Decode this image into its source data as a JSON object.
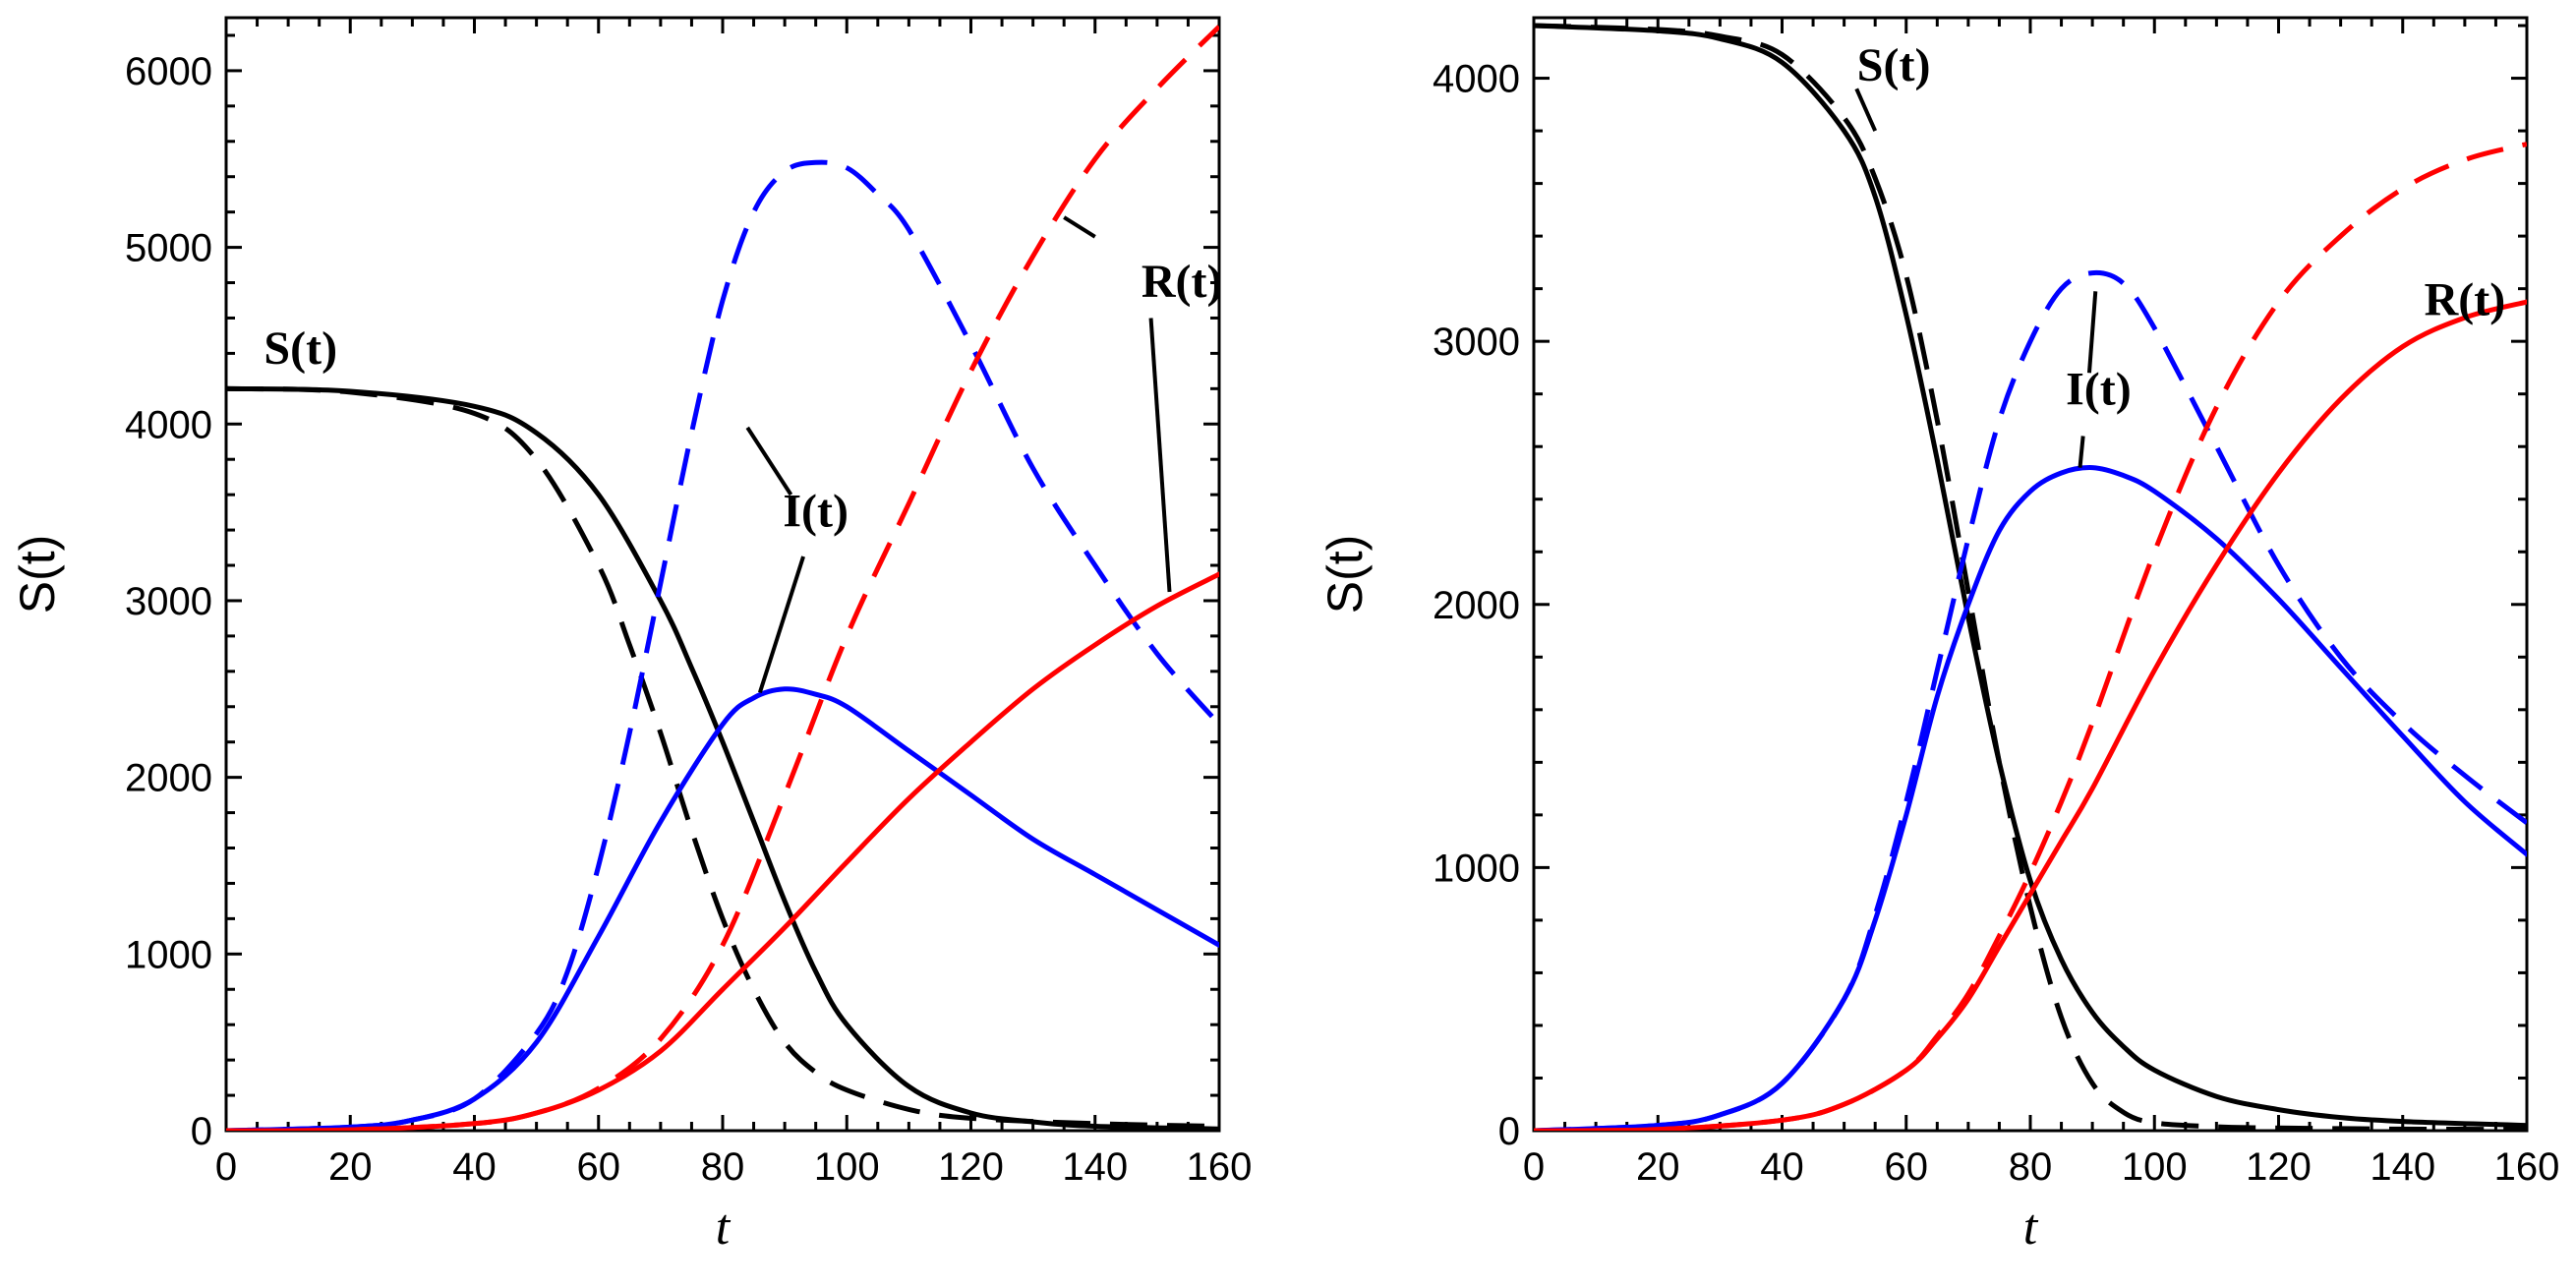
{
  "chart_data": [
    {
      "type": "line",
      "title": "",
      "xlabel": "t",
      "ylabel": "S(t)",
      "xlim": [
        0,
        160
      ],
      "ylim": [
        0,
        6300
      ],
      "xticks": [
        0,
        20,
        40,
        60,
        80,
        100,
        120,
        140,
        160
      ],
      "yticks": [
        0,
        1000,
        2000,
        3000,
        4000,
        5000,
        6000
      ],
      "xtick_labels": [
        "0",
        "20",
        "40",
        "60",
        "80",
        "100",
        "120",
        "140",
        "160"
      ],
      "ytick_labels": [
        "0",
        "1000",
        "2000",
        "3000",
        "4000",
        "5000",
        "6000"
      ],
      "grid": false,
      "series": [
        {
          "name": "S(t) solid",
          "color": "#000000",
          "style": "solid",
          "x": [
            0,
            20,
            40,
            50,
            60,
            70,
            75,
            80,
            85,
            90,
            95,
            100,
            110,
            120,
            130,
            140,
            160
          ],
          "y": [
            4200,
            4185,
            4100,
            3950,
            3600,
            3000,
            2620,
            2200,
            1750,
            1300,
            900,
            600,
            250,
            100,
            50,
            25,
            10
          ]
        },
        {
          "name": "S(t) dashed",
          "color": "#000000",
          "style": "dashed",
          "x": [
            0,
            20,
            40,
            50,
            60,
            65,
            70,
            75,
            80,
            85,
            90,
            95,
            100,
            110,
            120,
            140,
            160
          ],
          "y": [
            4200,
            4180,
            4060,
            3800,
            3200,
            2750,
            2250,
            1700,
            1200,
            800,
            500,
            330,
            230,
            120,
            70,
            40,
            25
          ]
        },
        {
          "name": "I(t) solid",
          "color": "#0000ff",
          "style": "solid",
          "x": [
            0,
            20,
            30,
            40,
            50,
            60,
            70,
            80,
            85,
            90,
            95,
            100,
            110,
            120,
            130,
            140,
            150,
            160
          ],
          "y": [
            0,
            20,
            60,
            180,
            500,
            1100,
            1750,
            2300,
            2450,
            2500,
            2470,
            2400,
            2150,
            1900,
            1650,
            1450,
            1250,
            1050
          ]
        },
        {
          "name": "I(t) dashed",
          "color": "#0000ff",
          "style": "dashed",
          "x": [
            0,
            20,
            30,
            40,
            50,
            55,
            60,
            65,
            70,
            75,
            80,
            85,
            90,
            95,
            100,
            105,
            110,
            120,
            130,
            140,
            150,
            160
          ],
          "y": [
            0,
            20,
            60,
            180,
            550,
            900,
            1500,
            2250,
            3100,
            3950,
            4700,
            5200,
            5430,
            5480,
            5450,
            5300,
            5100,
            4450,
            3750,
            3200,
            2700,
            2300
          ]
        },
        {
          "name": "R(t) solid",
          "color": "#ff0000",
          "style": "solid",
          "x": [
            0,
            20,
            40,
            50,
            60,
            70,
            80,
            90,
            100,
            110,
            120,
            130,
            140,
            150,
            160
          ],
          "y": [
            0,
            5,
            40,
            100,
            230,
            450,
            800,
            1150,
            1520,
            1880,
            2200,
            2500,
            2750,
            2970,
            3150
          ]
        },
        {
          "name": "R(t) dashed",
          "color": "#ff0000",
          "style": "dashed",
          "x": [
            0,
            20,
            40,
            50,
            60,
            70,
            80,
            90,
            100,
            110,
            120,
            130,
            140,
            150,
            160
          ],
          "y": [
            0,
            5,
            40,
            100,
            240,
            520,
            1050,
            1900,
            2800,
            3550,
            4300,
            4950,
            5500,
            5900,
            6250
          ]
        }
      ],
      "annotations": [
        {
          "text": "S(t)",
          "x": 12,
          "y": 4340
        },
        {
          "text": "I(t)",
          "x": 95,
          "y": 3420
        },
        {
          "text": "R(t)",
          "x": 154,
          "y": 4720
        }
      ],
      "leaders": [
        {
          "from": [
            84,
            3980
          ],
          "to": [
            91,
            3600
          ]
        },
        {
          "from": [
            93,
            3250
          ],
          "to": [
            86,
            2480
          ]
        },
        {
          "from": [
            149,
            4600
          ],
          "to": [
            152,
            3050
          ]
        },
        {
          "from": [
            135,
            5170
          ],
          "to": [
            140,
            5060
          ]
        }
      ]
    },
    {
      "type": "line",
      "title": "",
      "xlabel": "t",
      "ylabel": "S(t)",
      "xlim": [
        0,
        160
      ],
      "ylim": [
        0,
        4230
      ],
      "xticks": [
        0,
        20,
        40,
        60,
        80,
        100,
        120,
        140,
        160
      ],
      "yticks": [
        0,
        1000,
        2000,
        3000,
        4000
      ],
      "xtick_labels": [
        "0",
        "20",
        "40",
        "60",
        "80",
        "100",
        "120",
        "140",
        "160"
      ],
      "ytick_labels": [
        "0",
        "1000",
        "2000",
        "3000",
        "4000"
      ],
      "grid": false,
      "series": [
        {
          "name": "S(t) solid",
          "color": "#000000",
          "style": "solid",
          "x": [
            0,
            20,
            30,
            40,
            50,
            55,
            60,
            65,
            70,
            75,
            80,
            85,
            90,
            95,
            100,
            110,
            120,
            130,
            140,
            160
          ],
          "y": [
            4200,
            4180,
            4150,
            4060,
            3800,
            3550,
            3100,
            2550,
            1950,
            1400,
            950,
            650,
            450,
            320,
            230,
            130,
            80,
            50,
            35,
            20
          ]
        },
        {
          "name": "S(t) dashed",
          "color": "#000000",
          "style": "dashed",
          "x": [
            0,
            20,
            30,
            40,
            50,
            55,
            60,
            65,
            70,
            75,
            80,
            85,
            90,
            95,
            100,
            110,
            120,
            130,
            140,
            160
          ],
          "y": [
            4200,
            4185,
            4160,
            4090,
            3850,
            3620,
            3250,
            2700,
            2050,
            1400,
            850,
            430,
            180,
            70,
            30,
            15,
            10,
            8,
            6,
            5
          ]
        },
        {
          "name": "I(t) solid",
          "color": "#0000ff",
          "style": "solid",
          "x": [
            0,
            20,
            30,
            40,
            50,
            55,
            60,
            65,
            70,
            75,
            80,
            85,
            90,
            95,
            100,
            110,
            120,
            130,
            140,
            150,
            160
          ],
          "y": [
            0,
            20,
            60,
            180,
            500,
            800,
            1200,
            1650,
            2000,
            2280,
            2430,
            2500,
            2520,
            2490,
            2430,
            2250,
            2020,
            1760,
            1500,
            1250,
            1050
          ]
        },
        {
          "name": "I(t) dashed",
          "color": "#0000ff",
          "style": "dashed",
          "x": [
            0,
            20,
            30,
            40,
            50,
            55,
            60,
            65,
            70,
            75,
            80,
            85,
            90,
            95,
            100,
            110,
            120,
            130,
            140,
            150,
            160
          ],
          "y": [
            0,
            20,
            60,
            180,
            500,
            820,
            1250,
            1750,
            2250,
            2700,
            3000,
            3200,
            3260,
            3220,
            3050,
            2600,
            2150,
            1800,
            1550,
            1350,
            1170
          ]
        },
        {
          "name": "R(t) solid",
          "color": "#ff0000",
          "style": "solid",
          "x": [
            0,
            20,
            40,
            50,
            60,
            65,
            70,
            75,
            80,
            85,
            90,
            100,
            110,
            120,
            130,
            140,
            150,
            160
          ],
          "y": [
            0,
            5,
            40,
            100,
            230,
            350,
            500,
            700,
            900,
            1100,
            1300,
            1750,
            2150,
            2500,
            2780,
            2980,
            3090,
            3150
          ]
        },
        {
          "name": "R(t) dashed",
          "color": "#ff0000",
          "style": "dashed",
          "x": [
            0,
            20,
            40,
            50,
            60,
            65,
            70,
            75,
            80,
            85,
            90,
            100,
            110,
            120,
            130,
            140,
            150,
            160
          ],
          "y": [
            0,
            5,
            40,
            100,
            230,
            360,
            520,
            740,
            980,
            1250,
            1550,
            2200,
            2750,
            3150,
            3400,
            3580,
            3690,
            3750
          ]
        }
      ],
      "annotations": [
        {
          "text": "S(t)",
          "x": 58,
          "y": 3990
        },
        {
          "text": "I(t)",
          "x": 91,
          "y": 2760
        },
        {
          "text": "R(t)",
          "x": 150,
          "y": 3100
        }
      ],
      "leaders": [
        {
          "from": [
            52,
            3960
          ],
          "to": [
            55,
            3800
          ]
        },
        {
          "from": [
            90.5,
            3190
          ],
          "to": [
            89.5,
            2880
          ]
        },
        {
          "from": [
            88.5,
            2640
          ],
          "to": [
            88,
            2520
          ]
        }
      ]
    }
  ]
}
